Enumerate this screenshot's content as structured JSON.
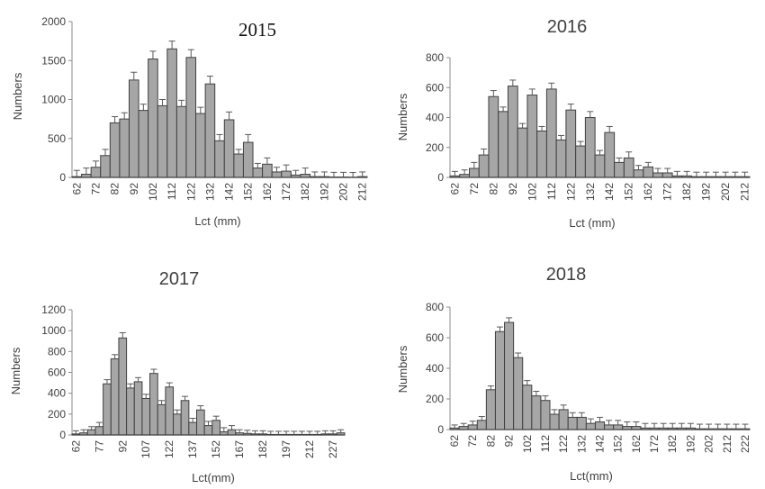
{
  "chart_data": [
    {
      "type": "bar",
      "title": "2015",
      "xlabel": "Lct (mm)",
      "ylabel": "Numbers",
      "ylim": [
        0,
        2000
      ],
      "yticks": [
        "0",
        "500",
        "1000",
        "1500",
        "2000"
      ],
      "x_tick_labels": [
        "62",
        "72",
        "82",
        "92",
        "102",
        "112",
        "122",
        "132",
        "142",
        "152",
        "162",
        "172",
        "182",
        "192",
        "202",
        "212"
      ],
      "categories": [
        "62",
        "67",
        "72",
        "77",
        "82",
        "87",
        "92",
        "97",
        "102",
        "107",
        "112",
        "117",
        "122",
        "127",
        "132",
        "137",
        "142",
        "147",
        "152",
        "157",
        "162",
        "167",
        "172",
        "177",
        "182",
        "187",
        "192",
        "197",
        "202",
        "207",
        "212"
      ],
      "values": [
        10,
        40,
        130,
        280,
        700,
        750,
        1250,
        860,
        1520,
        920,
        1650,
        910,
        1540,
        820,
        1200,
        470,
        740,
        300,
        450,
        120,
        170,
        70,
        80,
        30,
        40,
        10,
        10,
        5,
        5,
        3,
        10
      ],
      "errors": [
        80,
        80,
        80,
        80,
        80,
        80,
        100,
        80,
        100,
        80,
        100,
        80,
        100,
        80,
        100,
        80,
        100,
        60,
        100,
        60,
        80,
        60,
        80,
        60,
        80,
        60,
        60,
        60,
        60,
        60,
        60
      ]
    },
    {
      "type": "bar",
      "title": "2016",
      "xlabel": "Lct (mm)",
      "ylabel": "Numbers",
      "ylim": [
        0,
        800
      ],
      "yticks": [
        "0",
        "200",
        "400",
        "600",
        "800"
      ],
      "x_tick_labels": [
        "62",
        "72",
        "82",
        "92",
        "102",
        "112",
        "122",
        "132",
        "142",
        "152",
        "162",
        "172",
        "182",
        "192",
        "202",
        "212"
      ],
      "categories": [
        "62",
        "67",
        "72",
        "77",
        "82",
        "87",
        "92",
        "97",
        "102",
        "107",
        "112",
        "117",
        "122",
        "127",
        "132",
        "137",
        "142",
        "147",
        "152",
        "157",
        "162",
        "167",
        "172",
        "177",
        "182",
        "187",
        "192",
        "197",
        "202",
        "207",
        "212"
      ],
      "values": [
        10,
        20,
        60,
        150,
        540,
        440,
        610,
        330,
        550,
        310,
        590,
        250,
        450,
        210,
        400,
        150,
        300,
        100,
        130,
        50,
        70,
        30,
        30,
        10,
        10,
        5,
        5,
        5,
        5,
        5,
        5
      ],
      "errors": [
        30,
        30,
        40,
        40,
        40,
        30,
        40,
        30,
        40,
        30,
        40,
        30,
        40,
        30,
        40,
        30,
        40,
        30,
        40,
        30,
        30,
        30,
        30,
        30,
        30,
        30,
        30,
        30,
        30,
        30,
        30
      ]
    },
    {
      "type": "bar",
      "title": "2017",
      "xlabel": "Lct(mm)",
      "ylabel": "Numbers",
      "ylim": [
        0,
        1200
      ],
      "yticks": [
        "0",
        "200",
        "400",
        "600",
        "800",
        "1000",
        "1200"
      ],
      "x_tick_labels": [
        "62",
        "77",
        "92",
        "107",
        "122",
        "137",
        "152",
        "167",
        "182",
        "197",
        "212",
        "227"
      ],
      "categories": [
        "62",
        "67",
        "72",
        "77",
        "82",
        "87",
        "92",
        "97",
        "102",
        "107",
        "112",
        "117",
        "122",
        "127",
        "132",
        "137",
        "142",
        "147",
        "152",
        "157",
        "162",
        "167",
        "172",
        "177",
        "182",
        "187",
        "192",
        "197",
        "202",
        "207",
        "212",
        "217",
        "222",
        "227",
        "232"
      ],
      "values": [
        10,
        20,
        50,
        80,
        490,
        730,
        930,
        450,
        510,
        350,
        590,
        290,
        460,
        200,
        330,
        120,
        240,
        90,
        140,
        30,
        50,
        20,
        15,
        10,
        10,
        5,
        5,
        5,
        5,
        5,
        5,
        5,
        10,
        10,
        20
      ],
      "errors": [
        30,
        30,
        30,
        40,
        40,
        40,
        50,
        40,
        40,
        40,
        40,
        40,
        40,
        40,
        40,
        40,
        40,
        40,
        40,
        40,
        40,
        30,
        30,
        30,
        30,
        30,
        30,
        30,
        30,
        30,
        30,
        30,
        30,
        30,
        30
      ]
    },
    {
      "type": "bar",
      "title": "2018",
      "xlabel": "Lct(mm)",
      "ylabel": "Numbers",
      "ylim": [
        0,
        800
      ],
      "yticks": [
        "0",
        "200",
        "400",
        "600",
        "800"
      ],
      "x_tick_labels": [
        "62",
        "72",
        "82",
        "92",
        "102",
        "112",
        "122",
        "132",
        "142",
        "152",
        "162",
        "172",
        "182",
        "192",
        "202",
        "212",
        "222"
      ],
      "categories": [
        "62",
        "67",
        "72",
        "77",
        "82",
        "87",
        "92",
        "97",
        "102",
        "107",
        "112",
        "117",
        "122",
        "127",
        "132",
        "137",
        "142",
        "147",
        "152",
        "157",
        "162",
        "167",
        "172",
        "177",
        "182",
        "187",
        "192",
        "197",
        "202",
        "207",
        "212",
        "217",
        "222"
      ],
      "values": [
        10,
        20,
        30,
        60,
        260,
        640,
        700,
        470,
        290,
        220,
        190,
        100,
        130,
        80,
        80,
        40,
        50,
        30,
        30,
        20,
        20,
        10,
        10,
        10,
        10,
        10,
        10,
        5,
        5,
        5,
        5,
        5,
        5
      ],
      "errors": [
        20,
        20,
        25,
        25,
        25,
        30,
        30,
        30,
        30,
        30,
        30,
        30,
        30,
        30,
        30,
        30,
        30,
        30,
        30,
        30,
        30,
        30,
        30,
        30,
        30,
        30,
        30,
        30,
        30,
        30,
        30,
        30,
        30
      ]
    }
  ],
  "style": {
    "bar_fill": "#a6a6a6",
    "bar_stroke": "#404040",
    "text_color": "#404040"
  }
}
